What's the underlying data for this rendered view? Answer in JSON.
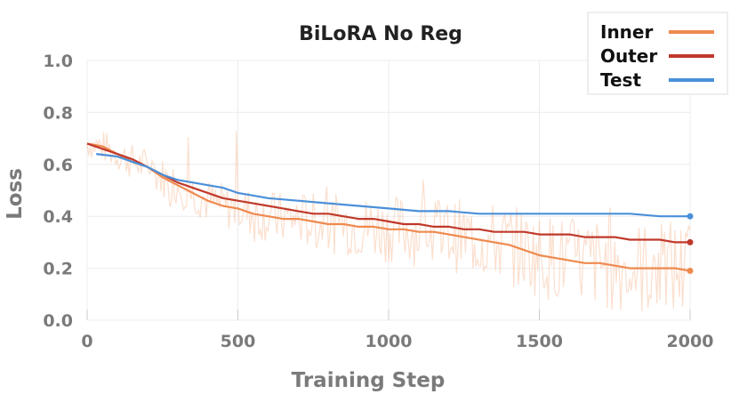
{
  "chart_data": {
    "type": "line",
    "title": "BiLoRA No Reg",
    "xlabel": "Training Step",
    "ylabel": "Loss",
    "xlim": [
      0,
      2000
    ],
    "ylim": [
      0,
      1.0
    ],
    "x_ticks": [
      "0",
      "500",
      "1000",
      "1500",
      "2000"
    ],
    "y_ticks": [
      "0.0",
      "0.2",
      "0.4",
      "0.6",
      "0.8",
      "1.0"
    ],
    "grid": true,
    "legend_position": "top-right",
    "series": [
      {
        "name": "Inner",
        "color": "#ee8a4f",
        "raw_color": "#f7c4a6",
        "x": [
          0,
          50,
          100,
          150,
          200,
          250,
          300,
          350,
          400,
          450,
          500,
          550,
          600,
          650,
          700,
          750,
          800,
          850,
          900,
          950,
          1000,
          1050,
          1100,
          1150,
          1200,
          1250,
          1300,
          1350,
          1400,
          1450,
          1500,
          1550,
          1600,
          1650,
          1700,
          1750,
          1800,
          1850,
          1900,
          1950,
          2000
        ],
        "values": [
          0.68,
          0.67,
          0.64,
          0.61,
          0.59,
          0.55,
          0.52,
          0.49,
          0.46,
          0.44,
          0.43,
          0.41,
          0.4,
          0.39,
          0.39,
          0.38,
          0.37,
          0.37,
          0.36,
          0.36,
          0.35,
          0.35,
          0.34,
          0.34,
          0.33,
          0.32,
          0.31,
          0.3,
          0.29,
          0.27,
          0.25,
          0.24,
          0.23,
          0.22,
          0.22,
          0.21,
          0.2,
          0.2,
          0.2,
          0.2,
          0.19
        ]
      },
      {
        "name": "Outer",
        "color": "#c0392b",
        "x": [
          0,
          50,
          100,
          150,
          200,
          250,
          300,
          350,
          400,
          450,
          500,
          550,
          600,
          650,
          700,
          750,
          800,
          850,
          900,
          950,
          1000,
          1050,
          1100,
          1150,
          1200,
          1250,
          1300,
          1350,
          1400,
          1450,
          1500,
          1550,
          1600,
          1650,
          1700,
          1750,
          1800,
          1850,
          1900,
          1950,
          2000
        ],
        "values": [
          0.68,
          0.66,
          0.64,
          0.62,
          0.59,
          0.56,
          0.53,
          0.51,
          0.49,
          0.47,
          0.46,
          0.45,
          0.44,
          0.43,
          0.42,
          0.41,
          0.41,
          0.4,
          0.39,
          0.39,
          0.38,
          0.37,
          0.37,
          0.36,
          0.36,
          0.35,
          0.35,
          0.34,
          0.34,
          0.34,
          0.33,
          0.33,
          0.33,
          0.32,
          0.32,
          0.32,
          0.31,
          0.31,
          0.31,
          0.3,
          0.3
        ]
      },
      {
        "name": "Test",
        "color": "#4a90d9",
        "x": [
          30,
          100,
          150,
          200,
          250,
          300,
          350,
          400,
          450,
          500,
          550,
          600,
          700,
          800,
          900,
          1000,
          1100,
          1200,
          1300,
          1400,
          1500,
          1600,
          1700,
          1800,
          1900,
          2000
        ],
        "values": [
          0.64,
          0.63,
          0.61,
          0.59,
          0.56,
          0.54,
          0.53,
          0.52,
          0.51,
          0.49,
          0.48,
          0.47,
          0.46,
          0.45,
          0.44,
          0.43,
          0.42,
          0.42,
          0.41,
          0.41,
          0.41,
          0.41,
          0.41,
          0.41,
          0.4,
          0.4
        ]
      }
    ]
  }
}
